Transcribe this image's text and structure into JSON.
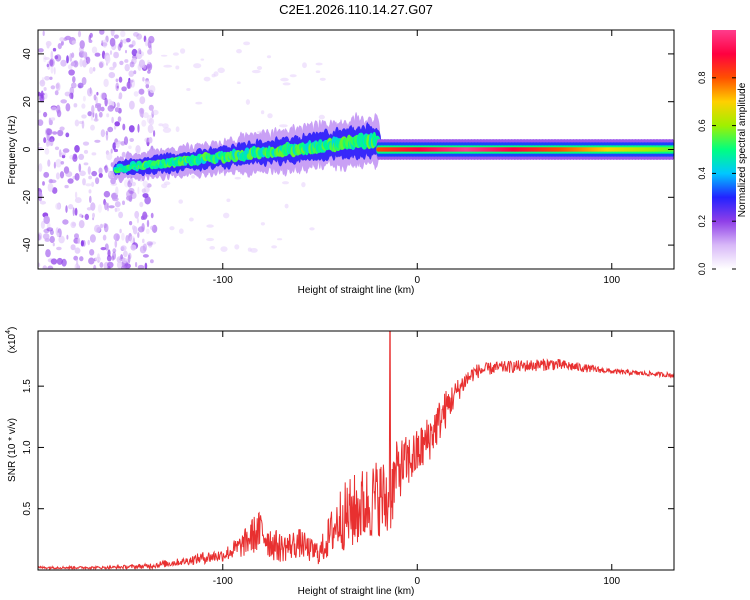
{
  "title": "C2E1.2026.110.14.27.G07",
  "chart_data": [
    {
      "type": "heatmap",
      "xlabel": "Height of straight line (km)",
      "ylabel": "Frequency (Hz)",
      "xlim": [
        -195,
        132
      ],
      "ylim": [
        -50,
        50
      ],
      "xticks": [
        -100,
        0,
        100
      ],
      "yticks": [
        -40,
        -20,
        0,
        20,
        40
      ],
      "colorbar": {
        "label": "Normalized spectral amplitude",
        "range": [
          0,
          1
        ],
        "ticks": [
          "0.0",
          "0.2",
          "0.4",
          "0.6",
          "0.8"
        ],
        "colors": [
          "#ffffff",
          "#d8b8f8",
          "#8f3fe8",
          "#2222ff",
          "#00c8ff",
          "#00ff80",
          "#a0f000",
          "#ffd000",
          "#ff5000",
          "#ff0040",
          "#ff3c8c"
        ]
      },
      "features": [
        {
          "name": "noise_field",
          "x_range": [
            -195,
            -135
          ],
          "freq_range": [
            -50,
            50
          ],
          "amplitude": 0.15
        },
        {
          "name": "signal_band_spreading",
          "x_range": [
            -155,
            -20
          ],
          "center_freq": [
            -8,
            4
          ],
          "half_width_hz": [
            3,
            7
          ],
          "amplitude_range": [
            0.2,
            0.55
          ]
        },
        {
          "name": "signal_band_locked",
          "x_range": [
            -20,
            132
          ],
          "center_freq": 0,
          "half_width_hz": 2,
          "amplitude_range": [
            0.55,
            1.0
          ]
        }
      ]
    },
    {
      "type": "line",
      "xlabel": "Height of straight line (km)",
      "ylabel": "SNR (10 * v/v)",
      "scale_label": "(x10",
      "scale_exponent": "4",
      "xlim": [
        -195,
        132
      ],
      "ylim": [
        0,
        1.95
      ],
      "xticks": [
        -100,
        0,
        100
      ],
      "yticks": [
        "0.5",
        "1.0",
        "1.5"
      ],
      "color": "#e83030",
      "series": [
        {
          "name": "SNR",
          "x": [
            -195,
            -160,
            -140,
            -130,
            -120,
            -110,
            -100,
            -90,
            -85,
            -80,
            -75,
            -70,
            -65,
            -60,
            -55,
            -50,
            -45,
            -40,
            -35,
            -30,
            -25,
            -20,
            -15,
            -10,
            -5,
            0,
            5,
            10,
            15,
            20,
            25,
            30,
            40,
            50,
            60,
            70,
            80,
            90,
            100,
            110,
            120,
            132
          ],
          "mean": [
            0.02,
            0.02,
            0.03,
            0.05,
            0.07,
            0.1,
            0.12,
            0.2,
            0.28,
            0.32,
            0.22,
            0.18,
            0.2,
            0.22,
            0.16,
            0.14,
            0.28,
            0.42,
            0.45,
            0.5,
            0.55,
            0.6,
            0.55,
            0.82,
            0.88,
            0.95,
            1.05,
            1.18,
            1.32,
            1.45,
            1.55,
            1.62,
            1.65,
            1.66,
            1.67,
            1.68,
            1.66,
            1.64,
            1.62,
            1.61,
            1.6,
            1.59
          ],
          "noise": [
            0.01,
            0.01,
            0.02,
            0.03,
            0.03,
            0.05,
            0.05,
            0.1,
            0.15,
            0.18,
            0.14,
            0.12,
            0.12,
            0.12,
            0.1,
            0.1,
            0.18,
            0.26,
            0.3,
            0.32,
            0.32,
            0.32,
            0.35,
            0.25,
            0.22,
            0.2,
            0.2,
            0.18,
            0.16,
            0.1,
            0.08,
            0.06,
            0.05,
            0.05,
            0.05,
            0.05,
            0.04,
            0.03,
            0.02,
            0.02,
            0.02,
            0.02
          ],
          "spike": {
            "x": -14,
            "y": 1.95
          }
        }
      ]
    }
  ]
}
